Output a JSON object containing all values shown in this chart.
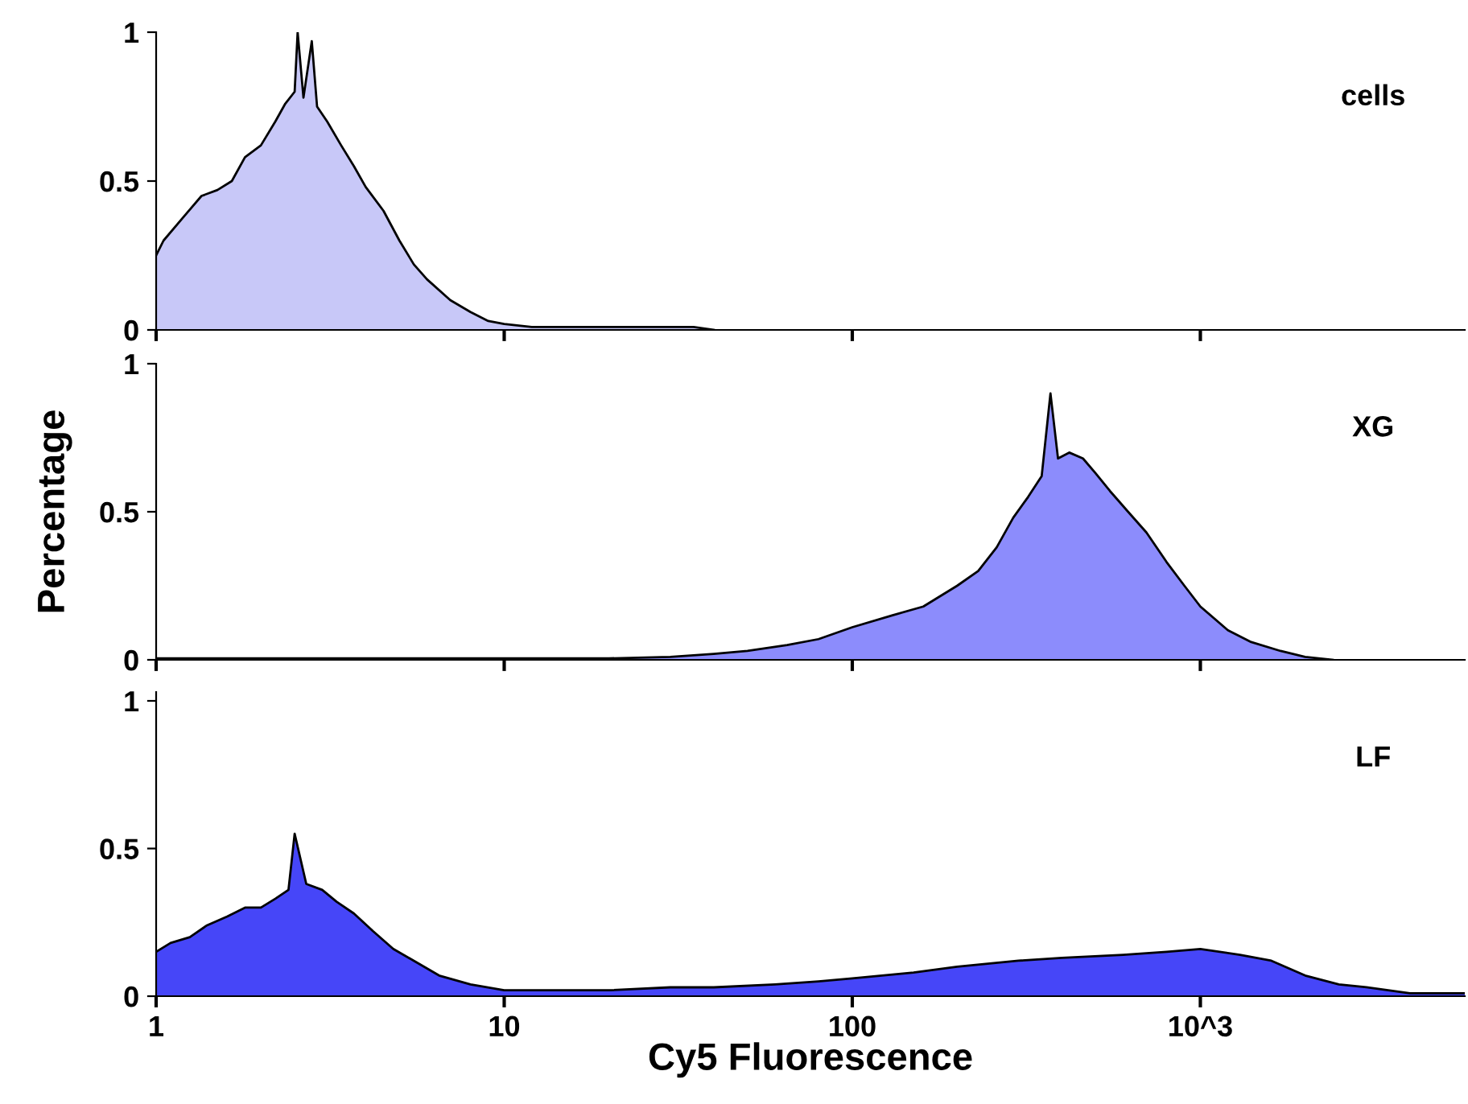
{
  "chart_data": [
    {
      "type": "area",
      "log": "x",
      "xlim": [
        1,
        5750
      ],
      "xticks": [
        1,
        10,
        100,
        1000
      ],
      "ylim": [
        0,
        1
      ],
      "yticks": [
        0,
        0.5,
        1
      ],
      "tick_labels": "y",
      "series": [
        {
          "name": "cells",
          "color": "#c8c8f8",
          "x": [
            1,
            1.05,
            1.2,
            1.35,
            1.5,
            1.65,
            1.8,
            2.0,
            2.2,
            2.35,
            2.5,
            2.55,
            2.65,
            2.8,
            2.9,
            3.1,
            3.4,
            3.7,
            4.0,
            4.5,
            5.0,
            5.5,
            6.0,
            7.0,
            8.0,
            9.0,
            10,
            12,
            15,
            20,
            25,
            30,
            35,
            40
          ],
          "values": [
            0.25,
            0.3,
            0.38,
            0.45,
            0.47,
            0.5,
            0.58,
            0.62,
            0.7,
            0.76,
            0.8,
            1.0,
            0.78,
            0.97,
            0.75,
            0.7,
            0.62,
            0.55,
            0.48,
            0.4,
            0.3,
            0.22,
            0.17,
            0.1,
            0.06,
            0.03,
            0.02,
            0.01,
            0.01,
            0.01,
            0.01,
            0.01,
            0.01,
            0
          ]
        }
      ]
    },
    {
      "type": "area",
      "log": "x",
      "xlim": [
        1,
        5750
      ],
      "xticks": [
        1,
        10,
        100,
        1000
      ],
      "ylim": [
        0,
        1
      ],
      "yticks": [
        0,
        0.5,
        1
      ],
      "tick_labels": "y",
      "ylabel": "Percentage",
      "series": [
        {
          "name": "XG",
          "color": "#8c8cfc",
          "x": [
            1,
            3,
            10,
            20,
            30,
            40,
            50,
            65,
            80,
            100,
            130,
            160,
            200,
            230,
            260,
            290,
            320,
            350,
            371,
            390,
            420,
            460,
            500,
            550,
            620,
            700,
            800,
            900,
            1000,
            1200,
            1400,
            1700,
            2000,
            2400
          ],
          "values": [
            0.005,
            0.005,
            0.005,
            0.005,
            0.01,
            0.02,
            0.03,
            0.05,
            0.07,
            0.11,
            0.15,
            0.18,
            0.25,
            0.3,
            0.38,
            0.48,
            0.55,
            0.62,
            0.9,
            0.68,
            0.7,
            0.68,
            0.63,
            0.57,
            0.5,
            0.43,
            0.33,
            0.25,
            0.18,
            0.1,
            0.06,
            0.03,
            0.01,
            0
          ]
        }
      ]
    },
    {
      "type": "area",
      "log": "x",
      "xlim": [
        1,
        5750
      ],
      "xticks": [
        1,
        10,
        100,
        {
          "value": 1000,
          "label": "10^3"
        }
      ],
      "ylim": [
        0,
        1.03
      ],
      "yticks": [
        0,
        0.5,
        1
      ],
      "xlabel": "Cy5 Fluorescence",
      "series": [
        {
          "name": "LF",
          "color": "#4646f8",
          "x": [
            1,
            1.1,
            1.25,
            1.4,
            1.6,
            1.8,
            2.0,
            2.2,
            2.4,
            2.5,
            2.7,
            3.0,
            3.3,
            3.7,
            4.2,
            4.8,
            5.5,
            6.5,
            8,
            10,
            15,
            20,
            30,
            40,
            60,
            80,
            100,
            150,
            200,
            300,
            400,
            600,
            800,
            1000,
            1300,
            1600,
            2000,
            2500,
            3000,
            4000,
            5750
          ],
          "values": [
            0.15,
            0.18,
            0.2,
            0.24,
            0.27,
            0.3,
            0.3,
            0.33,
            0.36,
            0.55,
            0.38,
            0.36,
            0.32,
            0.28,
            0.22,
            0.16,
            0.12,
            0.07,
            0.04,
            0.02,
            0.02,
            0.02,
            0.03,
            0.03,
            0.04,
            0.05,
            0.06,
            0.08,
            0.1,
            0.12,
            0.13,
            0.14,
            0.15,
            0.16,
            0.14,
            0.12,
            0.07,
            0.04,
            0.03,
            0.01,
            0.01
          ]
        }
      ]
    }
  ]
}
